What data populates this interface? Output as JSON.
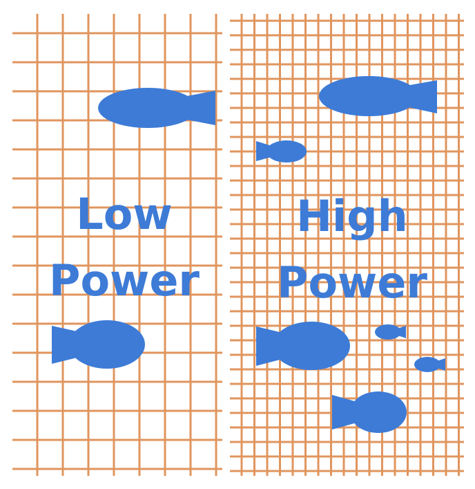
{
  "colors": {
    "grid_line": "#e0955e",
    "fish": "#3d7bd6",
    "text": "#3d7bd6",
    "background": "#ffffff"
  },
  "panels": {
    "low_power": {
      "label_line1": "Low",
      "label_line2": "Power",
      "mesh": "coarse"
    },
    "high_power": {
      "label_line1": "High",
      "label_line2": "Power",
      "mesh": "fine"
    }
  },
  "icons": {
    "fish": "fish-icon"
  }
}
